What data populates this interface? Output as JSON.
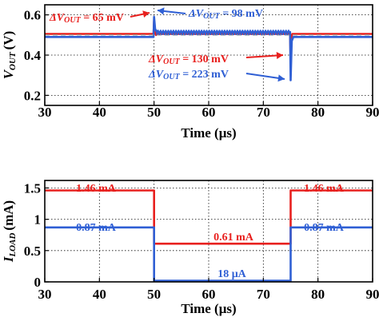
{
  "chart_data": [
    {
      "type": "line",
      "ylabel_main": "V",
      "ylabel_sub": "OUT",
      "ylabel_unit": "(V)",
      "xlabel": "Time (μs)",
      "xlim": [
        30,
        90
      ],
      "ylim": [
        0.15,
        0.65
      ],
      "xticks": [
        30,
        40,
        50,
        60,
        70,
        80,
        90
      ],
      "yticks": [
        0.2,
        0.4,
        0.6
      ],
      "grid": true,
      "colors": {
        "red": "#e8201e",
        "blue": "#2f5fd4",
        "gray": "#9a9a9a"
      },
      "series": [
        {
          "color": "red",
          "x": [
            30,
            49.9,
            50.0,
            50.15,
            50.35,
            50.6,
            51,
            74.9,
            75.0,
            75.15,
            75.3,
            75.6,
            76,
            90
          ],
          "y": [
            0.505,
            0.505,
            0.57,
            0.515,
            0.5,
            0.505,
            0.505,
            0.505,
            0.375,
            0.49,
            0.505,
            0.505,
            0.505,
            0.505
          ]
        },
        {
          "color": "blue",
          "x": [
            30,
            49.9,
            50.0,
            50.2,
            50.5,
            51,
            74.9,
            75.0,
            75.2,
            75.5,
            76,
            90
          ],
          "y": [
            0.49,
            0.49,
            0.59,
            0.53,
            0.515,
            0.515,
            0.515,
            0.275,
            0.47,
            0.49,
            0.49,
            0.49
          ]
        },
        {
          "color": "gray",
          "dashed": true,
          "x": [
            30,
            90
          ],
          "y": [
            0.5,
            0.5
          ]
        }
      ],
      "ripple": {
        "color": "blue",
        "x_start": 50.5,
        "x_end": 74.9,
        "low": 0.5,
        "high": 0.525
      },
      "annotations": [
        {
          "prefix": "ΔV",
          "sub": "OUT",
          "suffix": " = 65 mV",
          "color": "red",
          "arrow_to": [
            50.0,
            0.57
          ]
        },
        {
          "prefix": "ΔV",
          "sub": "OUT",
          "suffix": " = 98 mV",
          "color": "blue",
          "arrow_to": [
            50.0,
            0.59
          ]
        },
        {
          "prefix": "ΔV",
          "sub": "OUT",
          "suffix": " = 130 mV",
          "color": "red",
          "arrow_to": [
            75.0,
            0.375
          ]
        },
        {
          "prefix": "ΔV",
          "sub": "OUT",
          "suffix": " = 223 mV",
          "color": "blue",
          "arrow_to": [
            75.0,
            0.275
          ]
        }
      ]
    },
    {
      "type": "line",
      "ylabel_main": "I",
      "ylabel_sub": "LOAD",
      "ylabel_unit": "(mA)",
      "xlabel": "Time (μs)",
      "xlim": [
        30,
        90
      ],
      "ylim": [
        0,
        1.62
      ],
      "xticks": [
        30,
        40,
        50,
        60,
        70,
        80,
        90
      ],
      "yticks": [
        0,
        0.5,
        1,
        1.5
      ],
      "grid": true,
      "colors": {
        "red": "#e8201e",
        "blue": "#2f5fd4"
      },
      "series": [
        {
          "color": "red",
          "x": [
            30,
            50,
            50,
            75,
            75,
            90
          ],
          "y": [
            1.46,
            1.46,
            0.61,
            0.61,
            1.46,
            1.46
          ]
        },
        {
          "color": "blue",
          "x": [
            30,
            50,
            50,
            75,
            75,
            90
          ],
          "y": [
            0.87,
            0.87,
            0.018,
            0.018,
            0.87,
            0.87
          ]
        }
      ],
      "data_labels": [
        {
          "text": "1.46 mA",
          "color": "red",
          "x": 38,
          "y": 1.46
        },
        {
          "text": "0.87 mA",
          "color": "blue",
          "x": 38,
          "y": 0.87
        },
        {
          "text": "0.61 mA",
          "color": "red",
          "x": 65,
          "y": 0.61
        },
        {
          "text": "18 μA",
          "color": "blue",
          "x": 65,
          "y": 0.018
        },
        {
          "text": "1.46 mA",
          "color": "red",
          "x": 84,
          "y": 1.46
        },
        {
          "text": "0.87 mA",
          "color": "blue",
          "x": 84,
          "y": 0.87
        }
      ]
    }
  ]
}
